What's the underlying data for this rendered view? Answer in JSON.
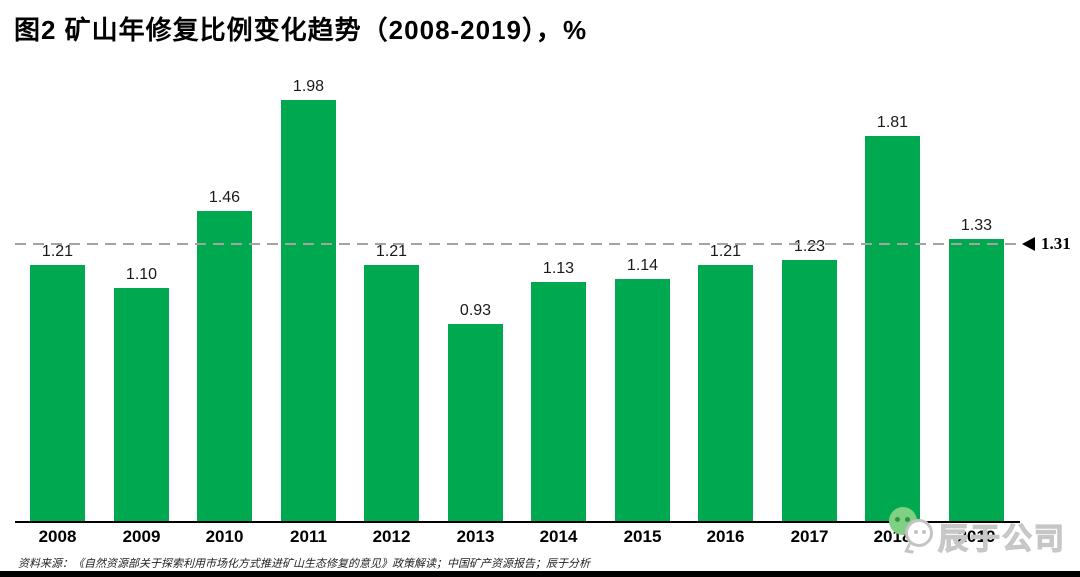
{
  "figure": {
    "title": "图2 矿山年修复比例变化趋势（2008-2019），%",
    "source_note": "资料来源：《自然资源部关于探索利用市场化方式推进矿山生态修复的意见》政策解读；中国矿产资源报告；辰于分析"
  },
  "chart_data": {
    "type": "bar",
    "title": "图2 矿山年修复比例变化趋势（2008-2019），%",
    "categories": [
      "2008",
      "2009",
      "2010",
      "2011",
      "2012",
      "2013",
      "2014",
      "2015",
      "2016",
      "2017",
      "2018",
      "2019"
    ],
    "values": [
      1.21,
      1.1,
      1.46,
      1.98,
      1.21,
      0.93,
      1.13,
      1.14,
      1.21,
      1.23,
      1.81,
      1.33
    ],
    "value_labels": [
      "1.21",
      "1.10",
      "1.46",
      "1.98",
      "1.21",
      "0.93",
      "1.13",
      "1.14",
      "1.21",
      "1.23",
      "1.81",
      "1.33"
    ],
    "xlabel": "",
    "ylabel": "",
    "ylim": [
      0,
      2.05
    ],
    "grid": false,
    "legend": null,
    "bar_color": "#00A84F",
    "reference_line": {
      "value": 1.31,
      "label": "1.31",
      "color": "#A3A3A3",
      "style": "dashed",
      "marker": "left-triangle-icon"
    }
  },
  "watermark": {
    "icon": "wechat-icon",
    "text": "辰于公司"
  },
  "colors": {
    "bar": "#00A84F",
    "reference_line": "#A3A3A3",
    "axis": "#000000",
    "background": "#FFFFFF",
    "bottom_bar": "#000000",
    "watermark_text": "#C6C6C6"
  }
}
